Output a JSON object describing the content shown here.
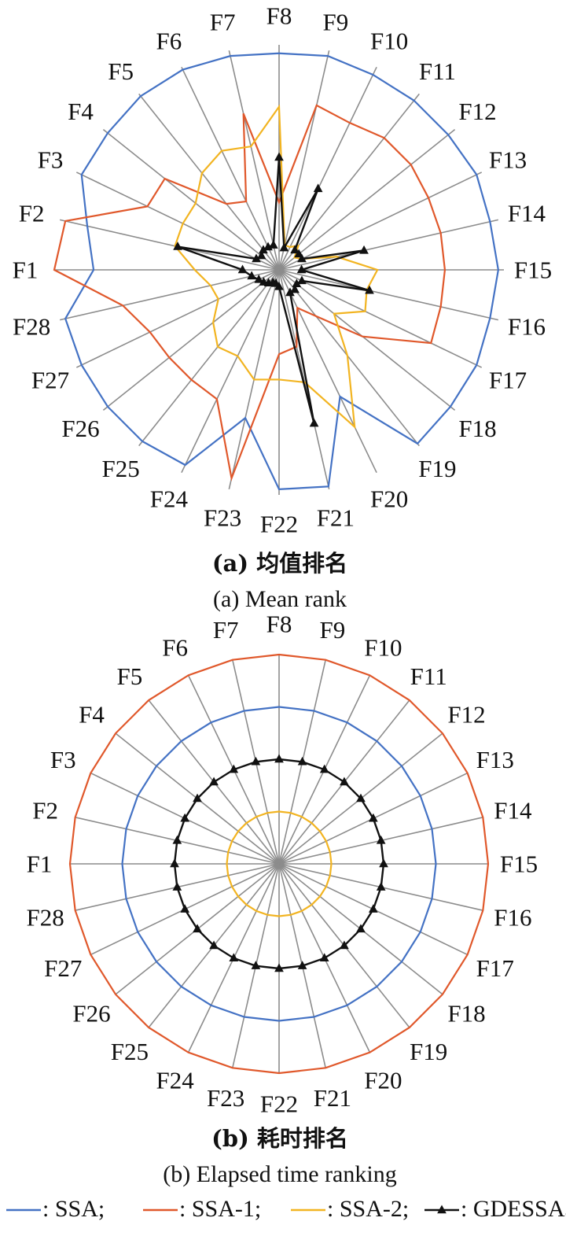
{
  "chart_data": [
    {
      "type": "radar",
      "title": "(a) 均值排名",
      "subtitle": "(a) Mean rank",
      "categories": [
        "F1",
        "F2",
        "F3",
        "F4",
        "F5",
        "F6",
        "F7",
        "F8",
        "F9",
        "F10",
        "F11",
        "F12",
        "F13",
        "F14",
        "F15",
        "F16",
        "F17",
        "F18",
        "F19",
        "F20",
        "F21",
        "F22",
        "F23",
        "F24",
        "F25",
        "F26",
        "F27",
        "F28"
      ],
      "rlim": [
        0,
        4
      ],
      "gridlines": "spokes",
      "series": [
        {
          "name": "SSA",
          "color": "#4472C4",
          "marker": "none",
          "values": [
            3.3,
            3.5,
            3.9,
            3.9,
            3.95,
            3.95,
            3.9,
            3.85,
            3.9,
            3.85,
            3.85,
            3.85,
            3.9,
            3.85,
            3.9,
            3.85,
            3.9,
            3.9,
            3.95,
            2.5,
            3.95,
            3.9,
            2.7,
            3.85,
            3.9,
            3.9,
            3.9,
            3.9
          ]
        },
        {
          "name": "SSA-1",
          "color": "#E0582B",
          "marker": "none",
          "values": [
            4.0,
            3.9,
            2.6,
            2.6,
            1.5,
            1.35,
            2.85,
            1.2,
            3.0,
            2.9,
            3.0,
            3.0,
            2.95,
            2.95,
            2.95,
            2.95,
            3.0,
            1.9,
            1.05,
            0.75,
            1.4,
            1.5,
            3.8,
            2.55,
            2.5,
            2.5,
            2.55,
            2.85
          ]
        },
        {
          "name": "SSA-2",
          "color": "#F2B421",
          "marker": "none",
          "values": [
            1.5,
            1.9,
            1.9,
            1.9,
            2.2,
            2.35,
            2.25,
            2.9,
            0.45,
            0.45,
            0.55,
            0.35,
            0.45,
            1.05,
            1.75,
            1.6,
            1.7,
            1.25,
            1.95,
            3.1,
            2.05,
            1.95,
            2.0,
            1.7,
            1.75,
            1.5,
            1.2,
            1.25
          ]
        },
        {
          "name": "GDESSA",
          "color": "#111111",
          "marker": "triangle",
          "values": [
            0.65,
            1.85,
            0.45,
            0.4,
            0.45,
            0.45,
            0.45,
            2.0,
            0.4,
            1.6,
            0.45,
            0.45,
            0.45,
            1.55,
            0.4,
            1.65,
            0.45,
            0.4,
            0.45,
            0.45,
            2.8,
            0.3,
            0.25,
            0.25,
            0.3,
            0.35,
            0.4,
            0.5
          ]
        }
      ]
    },
    {
      "type": "radar",
      "title": "(b) 耗时排名",
      "subtitle": "(b) Elapsed time ranking",
      "categories": [
        "F1",
        "F2",
        "F3",
        "F4",
        "F5",
        "F6",
        "F7",
        "F8",
        "F9",
        "F10",
        "F11",
        "F12",
        "F13",
        "F14",
        "F15",
        "F16",
        "F17",
        "F18",
        "F19",
        "F20",
        "F21",
        "F22",
        "F23",
        "F24",
        "F25",
        "F26",
        "F27",
        "F28"
      ],
      "rlim": [
        0,
        4
      ],
      "gridlines": "spokes",
      "series": [
        {
          "name": "SSA",
          "color": "#4472C4",
          "marker": "none",
          "values": [
            3,
            3,
            3,
            3,
            3,
            3,
            3,
            3,
            3,
            3,
            3,
            3,
            3,
            3,
            3,
            3,
            3,
            3,
            3,
            3,
            3,
            3,
            3,
            3,
            3,
            3,
            3,
            3
          ]
        },
        {
          "name": "SSA-1",
          "color": "#E0582B",
          "marker": "none",
          "values": [
            4,
            4,
            4,
            4,
            4,
            4,
            4,
            4,
            4,
            4,
            4,
            4,
            4,
            4,
            4,
            4,
            4,
            4,
            4,
            4,
            4,
            4,
            4,
            4,
            4,
            4,
            4,
            4
          ]
        },
        {
          "name": "SSA-2",
          "color": "#F2B421",
          "marker": "none",
          "values": [
            1,
            1,
            1,
            1,
            1,
            1,
            1,
            1,
            1,
            1,
            1,
            1,
            1,
            1,
            1,
            1,
            1,
            1,
            1,
            1,
            1,
            1,
            1,
            1,
            1,
            1,
            1,
            1
          ]
        },
        {
          "name": "GDESSA",
          "color": "#111111",
          "marker": "triangle",
          "values": [
            2,
            2,
            2,
            2,
            2,
            2,
            2,
            2,
            2,
            2,
            2,
            2,
            2,
            2,
            2,
            2,
            2,
            2,
            2,
            2,
            2,
            2,
            2,
            2,
            2,
            2,
            2,
            2
          ]
        }
      ]
    }
  ],
  "legend": [
    {
      "name": "SSA",
      "text": ": SSA;",
      "color": "#4472C4",
      "marker": "none"
    },
    {
      "name": "SSA-1",
      "text": ": SSA-1;",
      "color": "#E0582B",
      "marker": "none"
    },
    {
      "name": "SSA-2",
      "text": ": SSA-2;",
      "color": "#F2B421",
      "marker": "none"
    },
    {
      "name": "GDESSA",
      "text": ": GDESSA。",
      "color": "#111111",
      "marker": "triangle"
    }
  ],
  "colors": {
    "spoke": "#8C8C8C"
  }
}
